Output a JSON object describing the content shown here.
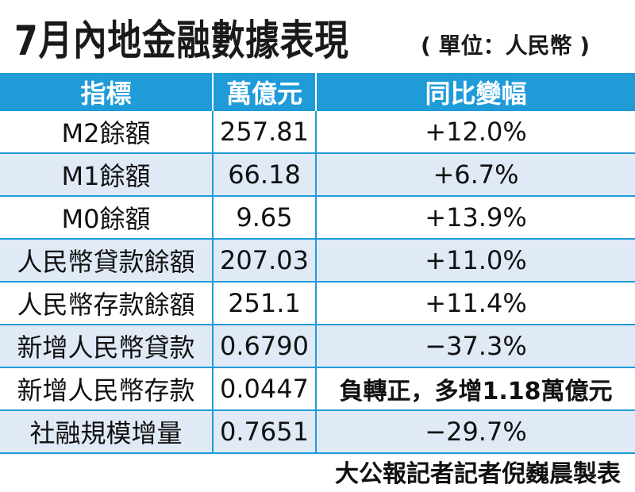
{
  "title": "7月內地金融數據表現",
  "unit": "( 單位：人民幣 )",
  "table": {
    "headers": [
      "指標",
      "萬億元",
      "同比變幅"
    ],
    "rows": [
      {
        "indicator": "M2餘額",
        "value": "257.81",
        "change": "+12.0%"
      },
      {
        "indicator": "M1餘額",
        "value": "66.18",
        "change": "+6.7%"
      },
      {
        "indicator": "M0餘額",
        "value": "9.65",
        "change": "+13.9%"
      },
      {
        "indicator": "人民幣貸款餘額",
        "value": "207.03",
        "change": "+11.0%"
      },
      {
        "indicator": "人民幣存款餘額",
        "value": "251.1",
        "change": "+11.4%"
      },
      {
        "indicator": "新增人民幣貸款",
        "value": "0.6790",
        "change": "−37.3%"
      },
      {
        "indicator": "新增人民幣存款",
        "value": "0.0447",
        "change": "負轉正，多增1.18萬億元"
      },
      {
        "indicator": "社融規模增量",
        "value": "0.7651",
        "change": "−29.7%"
      }
    ]
  },
  "credit": "大公報記者記者倪巍晨製表",
  "colors": {
    "header_bg": "#1f9bd8",
    "stripe_bg": "#e0e9f6"
  }
}
